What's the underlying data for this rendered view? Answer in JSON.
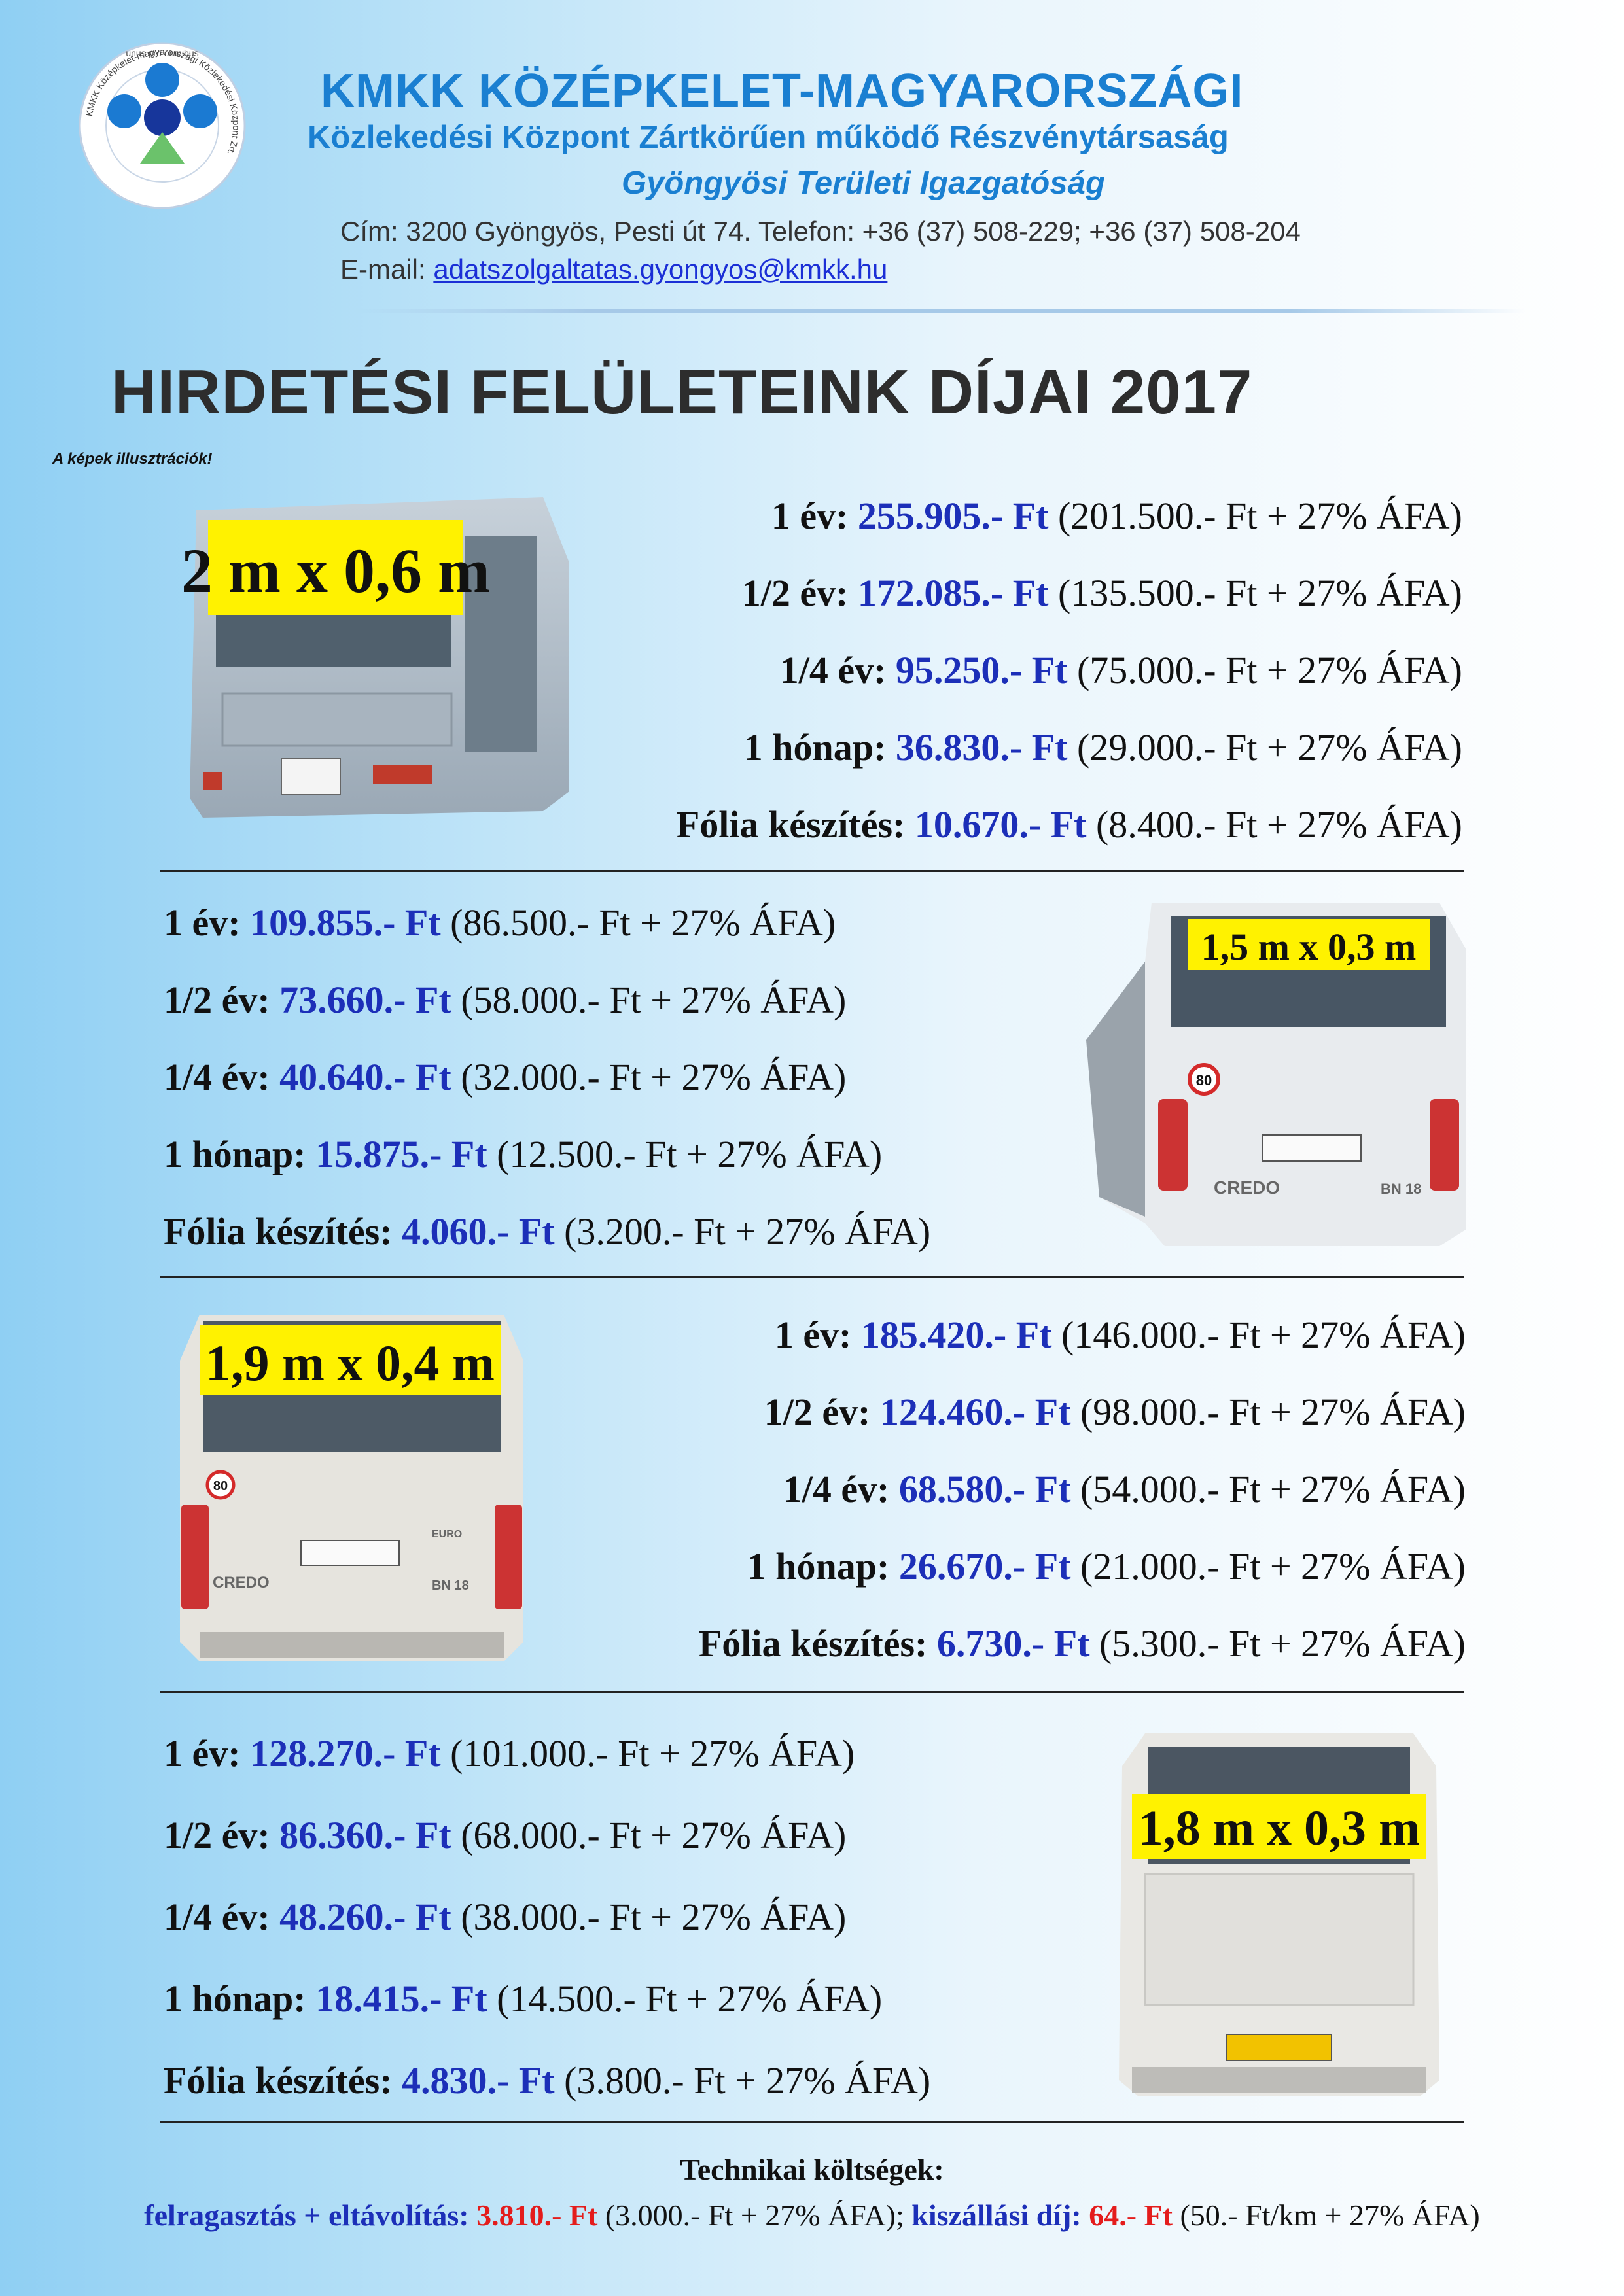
{
  "header": {
    "logo_text": "unus pro omnibus",
    "logo_ring_text": "KMKK Középkelet-magyarországi Közlekedési Központ Zrt.",
    "org_name": "KMKK KÖZÉPKELET-MAGYARORSZÁGI",
    "org_subtitle": "Közlekedési Központ Zártkörűen működő Részvénytársaság",
    "directorate": "Gyöngyösi Területi Igazgatóság",
    "address": "Cím: 3200 Gyöngyös, Pesti út 74.   Telefon: +36 (37) 508-229; +36 (37) 508-204",
    "email_label": "E-mail: ",
    "email": "adatszolgaltatas.gyongyos@kmkk.hu"
  },
  "title": "HIRDETÉSI FELÜLETEINK DÍJAI 2017",
  "illustration_note": "A képek illusztrációk!",
  "colors": {
    "brand_blue": "#1a7fd1",
    "price_blue": "#1c2fb8",
    "red": "#e41c1c",
    "label_yellow": "#fff200"
  },
  "surfaces": [
    {
      "size_label": "2 m x 0,6 m",
      "rows": [
        {
          "label": "1 év:",
          "price": "255.905.- Ft",
          "detail": "(201.500.- Ft + 27% ÁFA)"
        },
        {
          "label": "1/2 év:",
          "price": "172.085.- Ft",
          "detail": "(135.500.- Ft + 27% ÁFA)"
        },
        {
          "label": "1/4 év:",
          "price": "95.250.- Ft",
          "detail": "(75.000.- Ft + 27% ÁFA)"
        },
        {
          "label": "1 hónap:",
          "price": "36.830.- Ft",
          "detail": "(29.000.- Ft + 27% ÁFA)"
        },
        {
          "label": "Fólia készítés:",
          "price": "10.670.- Ft",
          "detail": "(8.400.- Ft + 27% ÁFA)"
        }
      ]
    },
    {
      "size_label": "1,5 m x 0,3 m",
      "rows": [
        {
          "label": "1 év:",
          "price": "109.855.- Ft",
          "detail": "(86.500.- Ft + 27% ÁFA)"
        },
        {
          "label": "1/2 év:",
          "price": "73.660.- Ft",
          "detail": "(58.000.- Ft + 27% ÁFA)"
        },
        {
          "label": "1/4 év:",
          "price": "40.640.- Ft",
          "detail": "(32.000.- Ft + 27% ÁFA)"
        },
        {
          "label": "1 hónap:",
          "price": "15.875.- Ft",
          "detail": "(12.500.- Ft + 27% ÁFA)"
        },
        {
          "label": "Fólia készítés:",
          "price": "4.060.- Ft",
          "detail": "(3.200.- Ft + 27% ÁFA)"
        }
      ]
    },
    {
      "size_label": "1,9 m x 0,4 m",
      "rows": [
        {
          "label": "1 év:",
          "price": "185.420.- Ft",
          "detail": "(146.000.- Ft + 27% ÁFA)"
        },
        {
          "label": "1/2 év:",
          "price": "124.460.- Ft",
          "detail": "(98.000.- Ft + 27% ÁFA)"
        },
        {
          "label": "1/4 év:",
          "price": "68.580.- Ft",
          "detail": "(54.000.- Ft + 27% ÁFA)"
        },
        {
          "label": "1 hónap:",
          "price": "26.670.- Ft",
          "detail": "(21.000.- Ft + 27% ÁFA)"
        },
        {
          "label": "Fólia készítés:",
          "price": "6.730.- Ft",
          "detail": "(5.300.- Ft + 27% ÁFA)"
        }
      ]
    },
    {
      "size_label": "1,8 m x 0,3 m",
      "rows": [
        {
          "label": "1 év:",
          "price": "128.270.- Ft",
          "detail": "(101.000.- Ft + 27% ÁFA)"
        },
        {
          "label": "1/2 év:",
          "price": "86.360.- Ft",
          "detail": "(68.000.- Ft + 27% ÁFA)"
        },
        {
          "label": "1/4 év:",
          "price": "48.260.- Ft",
          "detail": "(38.000.- Ft + 27% ÁFA)"
        },
        {
          "label": "1 hónap:",
          "price": "18.415.- Ft",
          "detail": "(14.500.- Ft + 27% ÁFA)"
        },
        {
          "label": "Fólia készítés:",
          "price": "4.830.- Ft",
          "detail": "(3.800.- Ft + 27% ÁFA)"
        }
      ]
    }
  ],
  "bus_texts": {
    "speed_sign": "80",
    "brand": "CREDO",
    "model": "BN 18",
    "euro": "EURO"
  },
  "technical": {
    "title": "Technikai költségek:",
    "mount_label": "felragasztás + eltávolítás:",
    "mount_price": "3.810.- Ft",
    "mount_detail": "(3.000.- Ft + 27% ÁFA);",
    "travel_label": "kiszállási díj:",
    "travel_price": "64.- Ft",
    "travel_detail": "(50.- Ft/km + 27% ÁFA)"
  }
}
